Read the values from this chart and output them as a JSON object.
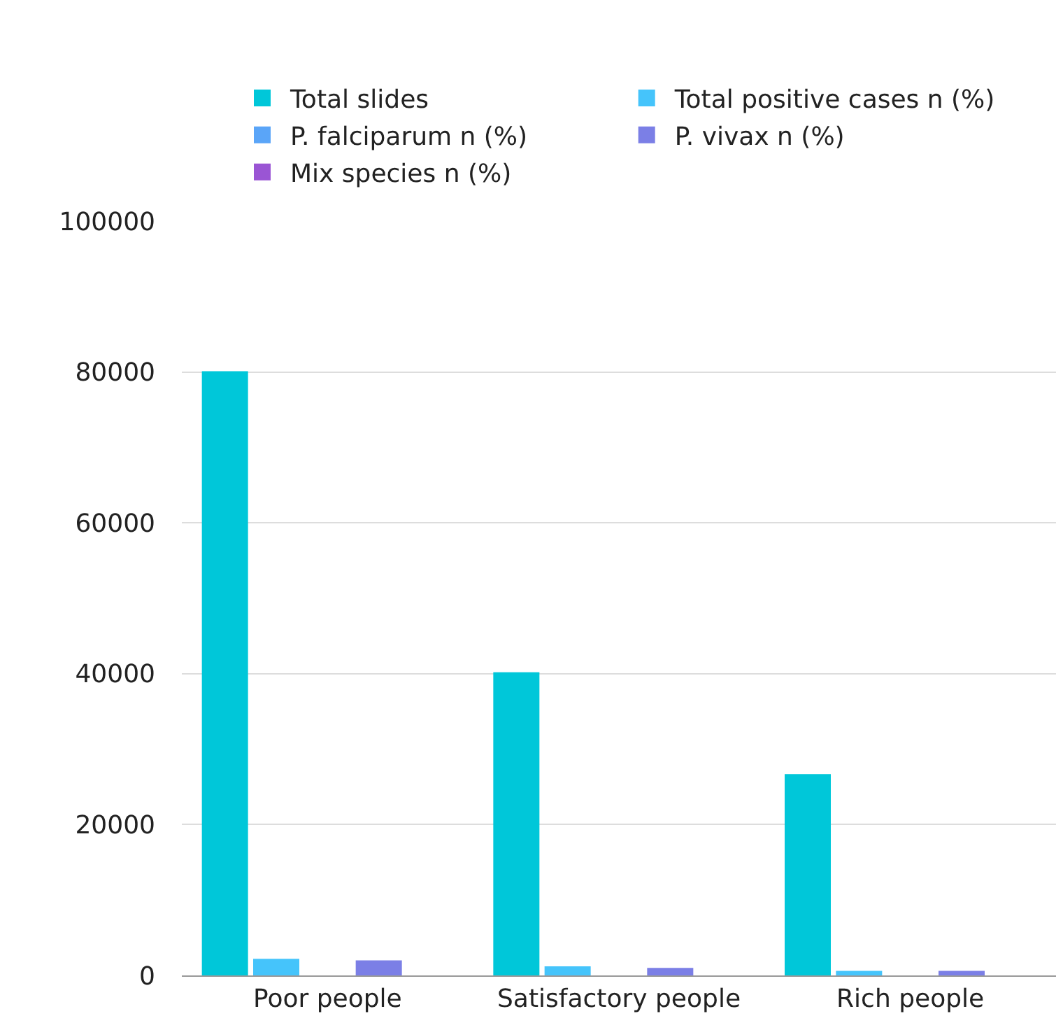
{
  "chart_data": {
    "type": "bar",
    "categories": [
      "Poor people",
      "Satisfactory people",
      "Rich people"
    ],
    "series": [
      {
        "name": "Total slides",
        "color": "#00c7d9",
        "values": [
          80100,
          40200,
          26700
        ]
      },
      {
        "name": "Total positive cases n (%)",
        "color": "#45c4fb",
        "values": [
          2200,
          1200,
          600
        ]
      },
      {
        "name": "P. falciparum n (%)",
        "color": "#5aa5f8",
        "values": [
          0,
          0,
          0
        ]
      },
      {
        "name": "P. vivax n (%)",
        "color": "#7b7fe6",
        "values": [
          2000,
          1000,
          600
        ]
      },
      {
        "name": "Mix species n (%)",
        "color": "#9a55d4",
        "values": [
          0,
          0,
          0
        ]
      }
    ],
    "ylim": [
      0,
      100000
    ],
    "yticks": [
      0,
      20000,
      40000,
      60000,
      80000,
      100000
    ],
    "grid": "y",
    "legend": "top"
  }
}
